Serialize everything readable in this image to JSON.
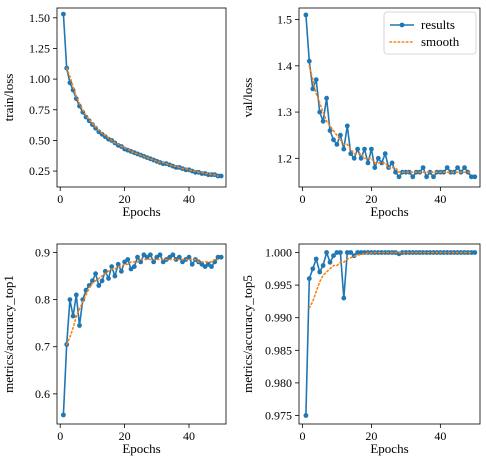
{
  "colors": {
    "results": "#1f77b4",
    "smooth": "#ff7f0e"
  },
  "legend": {
    "results_label": "results",
    "smooth_label": "smooth",
    "placement": "top-right"
  },
  "chart_data": [
    {
      "type": "line",
      "title": "",
      "xlabel": "Epochs",
      "ylabel": "train/loss",
      "xlim": [
        -1,
        51.5
      ],
      "ylim": [
        0.12,
        1.58
      ],
      "xticks": [
        0,
        20,
        40
      ],
      "yticks": [
        0.25,
        0.5,
        0.75,
        1.0,
        1.25,
        1.5
      ],
      "ytick_labels": [
        "0.25",
        "0.50",
        "0.75",
        "1.00",
        "1.25",
        "1.50"
      ],
      "legend": false,
      "series": [
        {
          "kind": "results",
          "x": [
            1,
            2,
            3,
            4,
            5,
            6,
            7,
            8,
            9,
            10,
            11,
            12,
            13,
            14,
            15,
            16,
            17,
            18,
            19,
            20,
            21,
            22,
            23,
            24,
            25,
            26,
            27,
            28,
            29,
            30,
            31,
            32,
            33,
            34,
            35,
            36,
            37,
            38,
            39,
            40,
            41,
            42,
            43,
            44,
            45,
            46,
            47,
            48,
            49,
            50
          ],
          "y": [
            1.53,
            1.09,
            0.97,
            0.91,
            0.84,
            0.78,
            0.73,
            0.69,
            0.66,
            0.63,
            0.6,
            0.57,
            0.55,
            0.53,
            0.51,
            0.5,
            0.48,
            0.46,
            0.45,
            0.43,
            0.42,
            0.41,
            0.4,
            0.39,
            0.38,
            0.37,
            0.36,
            0.35,
            0.34,
            0.33,
            0.32,
            0.31,
            0.31,
            0.3,
            0.29,
            0.28,
            0.28,
            0.27,
            0.26,
            0.26,
            0.25,
            0.24,
            0.24,
            0.23,
            0.23,
            0.22,
            0.22,
            0.22,
            0.21,
            0.21
          ]
        },
        {
          "kind": "smooth",
          "x": [
            2,
            3,
            4,
            5,
            6,
            7,
            8,
            9,
            10,
            11,
            12,
            13,
            14,
            15,
            16,
            17,
            18,
            19,
            20,
            21,
            22,
            23,
            24,
            25,
            26,
            27,
            28,
            29,
            30,
            31,
            32,
            33,
            34,
            35,
            36,
            37,
            38,
            39,
            40,
            41,
            42,
            43,
            44,
            45,
            46,
            47,
            48,
            49
          ],
          "y": [
            1.09,
            1.02,
            0.94,
            0.86,
            0.8,
            0.75,
            0.7,
            0.67,
            0.64,
            0.61,
            0.58,
            0.56,
            0.54,
            0.52,
            0.5,
            0.48,
            0.47,
            0.45,
            0.44,
            0.43,
            0.41,
            0.4,
            0.39,
            0.38,
            0.37,
            0.36,
            0.35,
            0.34,
            0.33,
            0.32,
            0.32,
            0.31,
            0.3,
            0.29,
            0.29,
            0.28,
            0.27,
            0.27,
            0.26,
            0.25,
            0.25,
            0.24,
            0.24,
            0.23,
            0.23,
            0.22,
            0.22,
            0.21
          ]
        }
      ]
    },
    {
      "type": "line",
      "title": "",
      "xlabel": "Epochs",
      "ylabel": "val/loss",
      "xlim": [
        -1,
        51.5
      ],
      "ylim": [
        1.138,
        1.525
      ],
      "xticks": [
        0,
        20,
        40
      ],
      "yticks": [
        1.2,
        1.3,
        1.4,
        1.5
      ],
      "ytick_labels": [
        "1.2",
        "1.3",
        "1.4",
        "1.5"
      ],
      "legend": true,
      "series": [
        {
          "kind": "results",
          "x": [
            1,
            2,
            3,
            4,
            5,
            6,
            7,
            8,
            9,
            10,
            11,
            12,
            13,
            14,
            15,
            16,
            17,
            18,
            19,
            20,
            21,
            22,
            23,
            24,
            25,
            26,
            27,
            28,
            29,
            30,
            31,
            32,
            33,
            34,
            35,
            36,
            37,
            38,
            39,
            40,
            41,
            42,
            43,
            44,
            45,
            46,
            47,
            48,
            49,
            50
          ],
          "y": [
            1.51,
            1.41,
            1.35,
            1.37,
            1.3,
            1.28,
            1.33,
            1.26,
            1.24,
            1.23,
            1.25,
            1.22,
            1.27,
            1.21,
            1.2,
            1.22,
            1.2,
            1.22,
            1.19,
            1.22,
            1.18,
            1.2,
            1.19,
            1.21,
            1.18,
            1.19,
            1.17,
            1.16,
            1.17,
            1.17,
            1.17,
            1.16,
            1.17,
            1.17,
            1.18,
            1.16,
            1.17,
            1.16,
            1.17,
            1.17,
            1.17,
            1.18,
            1.17,
            1.17,
            1.18,
            1.17,
            1.18,
            1.17,
            1.16,
            1.16
          ]
        },
        {
          "kind": "smooth",
          "x": [
            2,
            3,
            4,
            5,
            6,
            7,
            8,
            9,
            10,
            11,
            12,
            13,
            14,
            15,
            16,
            17,
            18,
            19,
            20,
            21,
            22,
            23,
            24,
            25,
            26,
            27,
            28,
            29,
            30,
            31,
            32,
            33,
            34,
            35,
            36,
            37,
            38,
            39,
            40,
            41,
            42,
            43,
            44,
            45,
            46,
            47,
            48,
            49
          ],
          "y": [
            1.4,
            1.37,
            1.34,
            1.32,
            1.3,
            1.28,
            1.27,
            1.26,
            1.25,
            1.24,
            1.23,
            1.23,
            1.22,
            1.21,
            1.21,
            1.21,
            1.2,
            1.2,
            1.2,
            1.19,
            1.19,
            1.19,
            1.19,
            1.18,
            1.18,
            1.18,
            1.17,
            1.17,
            1.17,
            1.17,
            1.17,
            1.17,
            1.17,
            1.17,
            1.17,
            1.17,
            1.17,
            1.17,
            1.17,
            1.17,
            1.17,
            1.17,
            1.17,
            1.17,
            1.17,
            1.17,
            1.17,
            1.17
          ]
        }
      ]
    },
    {
      "type": "line",
      "title": "",
      "xlabel": "Epochs",
      "ylabel": "metrics/accuracy_top1",
      "xlim": [
        -1,
        51.5
      ],
      "ylim": [
        0.536,
        0.918
      ],
      "xticks": [
        0,
        20,
        40
      ],
      "yticks": [
        0.6,
        0.7,
        0.8,
        0.9
      ],
      "ytick_labels": [
        "0.6",
        "0.7",
        "0.8",
        "0.9"
      ],
      "legend": false,
      "series": [
        {
          "kind": "results",
          "x": [
            1,
            2,
            3,
            4,
            5,
            6,
            7,
            8,
            9,
            10,
            11,
            12,
            13,
            14,
            15,
            16,
            17,
            18,
            19,
            20,
            21,
            22,
            23,
            24,
            25,
            26,
            27,
            28,
            29,
            30,
            31,
            32,
            33,
            34,
            35,
            36,
            37,
            38,
            39,
            40,
            41,
            42,
            43,
            44,
            45,
            46,
            47,
            48,
            49,
            50
          ],
          "y": [
            0.555,
            0.705,
            0.8,
            0.765,
            0.81,
            0.745,
            0.8,
            0.82,
            0.83,
            0.84,
            0.855,
            0.83,
            0.84,
            0.86,
            0.845,
            0.87,
            0.85,
            0.875,
            0.86,
            0.88,
            0.885,
            0.865,
            0.87,
            0.89,
            0.88,
            0.895,
            0.89,
            0.895,
            0.88,
            0.89,
            0.895,
            0.88,
            0.885,
            0.89,
            0.895,
            0.885,
            0.89,
            0.88,
            0.885,
            0.89,
            0.875,
            0.885,
            0.88,
            0.875,
            0.87,
            0.875,
            0.87,
            0.88,
            0.89,
            0.89
          ]
        },
        {
          "kind": "smooth",
          "x": [
            2,
            3,
            4,
            5,
            6,
            7,
            8,
            9,
            10,
            11,
            12,
            13,
            14,
            15,
            16,
            17,
            18,
            19,
            20,
            21,
            22,
            23,
            24,
            25,
            26,
            27,
            28,
            29,
            30,
            31,
            32,
            33,
            34,
            35,
            36,
            37,
            38,
            39,
            40,
            41,
            42,
            43,
            44,
            45,
            46,
            47,
            48,
            49
          ],
          "y": [
            0.705,
            0.72,
            0.74,
            0.765,
            0.78,
            0.795,
            0.81,
            0.825,
            0.835,
            0.84,
            0.845,
            0.85,
            0.855,
            0.86,
            0.865,
            0.865,
            0.87,
            0.87,
            0.875,
            0.875,
            0.88,
            0.88,
            0.88,
            0.885,
            0.885,
            0.885,
            0.885,
            0.885,
            0.885,
            0.885,
            0.885,
            0.885,
            0.885,
            0.885,
            0.885,
            0.885,
            0.885,
            0.885,
            0.885,
            0.885,
            0.885,
            0.88,
            0.88,
            0.88,
            0.88,
            0.88,
            0.885,
            0.885
          ]
        }
      ]
    },
    {
      "type": "line",
      "title": "",
      "xlabel": "Epochs",
      "ylabel": "metrics/accuracy_top5",
      "xlim": [
        -1,
        51.5
      ],
      "ylim": [
        0.9737,
        1.0013
      ],
      "xticks": [
        0,
        20,
        40
      ],
      "yticks": [
        0.975,
        0.98,
        0.985,
        0.99,
        0.995,
        1.0
      ],
      "ytick_labels": [
        "0.975",
        "0.980",
        "0.985",
        "0.990",
        "0.995",
        "1.000"
      ],
      "legend": false,
      "series": [
        {
          "kind": "results",
          "x": [
            1,
            2,
            3,
            4,
            5,
            6,
            7,
            8,
            9,
            10,
            11,
            12,
            13,
            14,
            15,
            16,
            17,
            18,
            19,
            20,
            21,
            22,
            23,
            24,
            25,
            26,
            27,
            28,
            29,
            30,
            31,
            32,
            33,
            34,
            35,
            36,
            37,
            38,
            39,
            40,
            41,
            42,
            43,
            44,
            45,
            46,
            47,
            48,
            49,
            50
          ],
          "y": [
            0.975,
            0.996,
            0.9975,
            0.999,
            0.997,
            0.998,
            1.0,
            0.9985,
            0.9995,
            1.0,
            1.0,
            0.993,
            1.0,
            1.0,
            0.9995,
            1.0,
            1.0,
            1.0,
            1.0,
            1.0,
            1.0,
            1.0,
            1.0,
            1.0,
            1.0,
            1.0,
            1.0,
            0.9998,
            1.0,
            1.0,
            1.0,
            1.0,
            1.0,
            1.0,
            1.0,
            1.0,
            1.0,
            1.0,
            1.0,
            1.0,
            1.0,
            1.0,
            1.0,
            1.0,
            1.0,
            1.0,
            1.0,
            1.0,
            1.0,
            1.0
          ]
        },
        {
          "kind": "smooth",
          "x": [
            2,
            3,
            4,
            5,
            6,
            7,
            8,
            9,
            10,
            11,
            12,
            13,
            14,
            15,
            16,
            17,
            18,
            19,
            20,
            21,
            22,
            23,
            24,
            25,
            26,
            27,
            28,
            29,
            30,
            31,
            32,
            33,
            34,
            35,
            36,
            37,
            38,
            39,
            40,
            41,
            42,
            43,
            44,
            45,
            46,
            47,
            48,
            49
          ],
          "y": [
            0.9915,
            0.9925,
            0.994,
            0.9955,
            0.9965,
            0.997,
            0.9975,
            0.998,
            0.998,
            0.9985,
            0.9985,
            0.999,
            0.9992,
            0.9994,
            0.9996,
            0.9997,
            0.9998,
            0.9999,
            0.9999,
            1.0,
            1.0,
            1.0,
            1.0,
            1.0,
            1.0,
            1.0,
            1.0,
            1.0,
            1.0,
            1.0,
            1.0,
            1.0,
            1.0,
            1.0,
            1.0,
            1.0,
            1.0,
            1.0,
            1.0,
            1.0,
            1.0,
            1.0,
            1.0,
            1.0,
            1.0,
            1.0,
            1.0,
            1.0
          ]
        }
      ]
    }
  ]
}
